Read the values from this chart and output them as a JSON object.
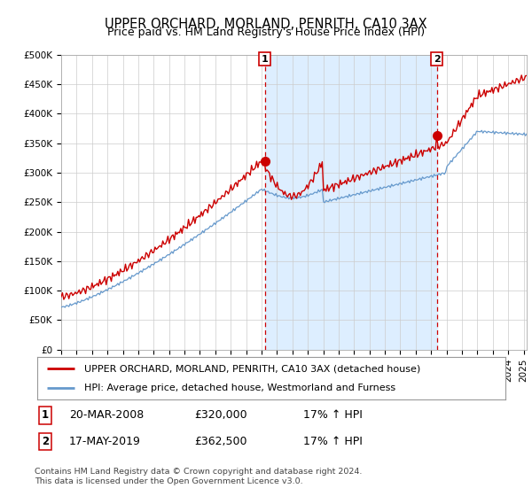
{
  "title": "UPPER ORCHARD, MORLAND, PENRITH, CA10 3AX",
  "subtitle": "Price paid vs. HM Land Registry's House Price Index (HPI)",
  "ylabel_ticks": [
    "£0",
    "£50K",
    "£100K",
    "£150K",
    "£200K",
    "£250K",
    "£300K",
    "£350K",
    "£400K",
    "£450K",
    "£500K"
  ],
  "ytick_vals": [
    0,
    50000,
    100000,
    150000,
    200000,
    250000,
    300000,
    350000,
    400000,
    450000,
    500000
  ],
  "ylim": [
    0,
    500000
  ],
  "xlim_start": 1995.0,
  "xlim_end": 2025.2,
  "red_line_color": "#cc0000",
  "blue_line_color": "#6699cc",
  "shade_color": "#ddeeff",
  "marker1_x": 2008.22,
  "marker1_y": 320000,
  "marker2_x": 2019.38,
  "marker2_y": 362500,
  "legend_label_red": "UPPER ORCHARD, MORLAND, PENRITH, CA10 3AX (detached house)",
  "legend_label_blue": "HPI: Average price, detached house, Westmorland and Furness",
  "footnote": "Contains HM Land Registry data © Crown copyright and database right 2024.\nThis data is licensed under the Open Government Licence v3.0.",
  "bg_color": "#ffffff",
  "grid_color": "#cccccc",
  "dashed_line_color": "#cc0000"
}
